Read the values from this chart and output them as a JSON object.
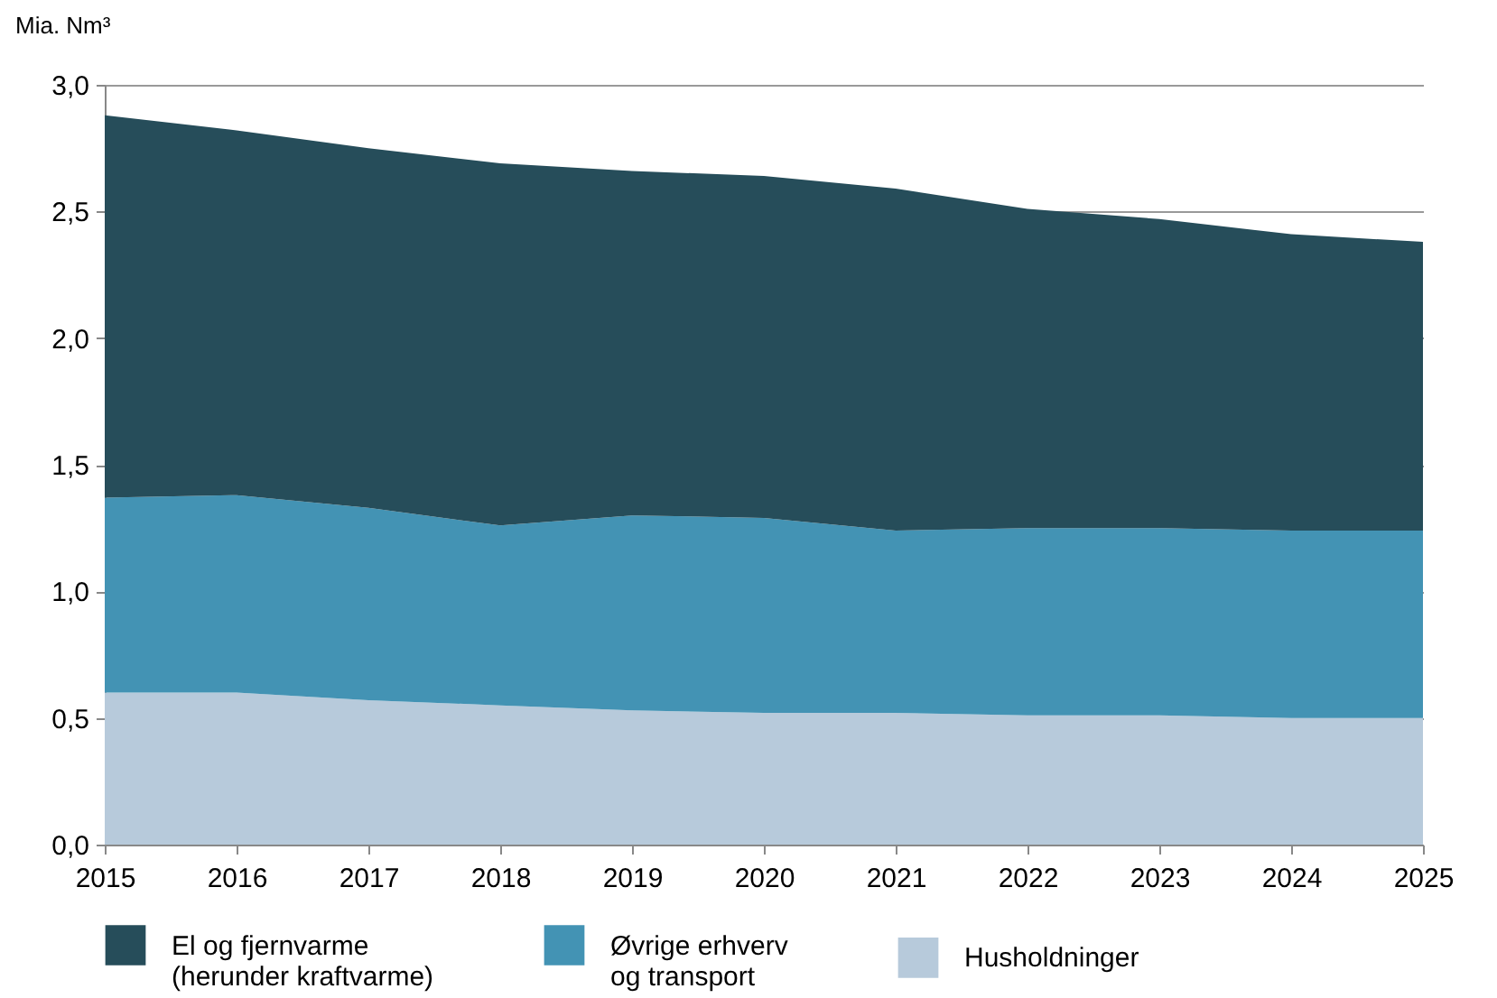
{
  "chart_data": {
    "type": "area",
    "stacked": true,
    "ylabel": "Mia. Nm³",
    "x": [
      2015,
      2016,
      2017,
      2018,
      2019,
      2020,
      2021,
      2022,
      2023,
      2024,
      2025
    ],
    "series": [
      {
        "name": "Husholdninger",
        "color": "#b7cadb",
        "values": [
          0.6,
          0.6,
          0.57,
          0.55,
          0.53,
          0.52,
          0.52,
          0.51,
          0.51,
          0.5,
          0.5
        ]
      },
      {
        "name": "Øvrige erhverv\nog transport",
        "color": "#4393b4",
        "values": [
          0.77,
          0.78,
          0.76,
          0.71,
          0.77,
          0.77,
          0.72,
          0.74,
          0.74,
          0.74,
          0.74
        ]
      },
      {
        "name": "El og fjernvarme\n(herunder kraftvarme)",
        "color": "#264d5a",
        "values": [
          1.51,
          1.44,
          1.42,
          1.43,
          1.36,
          1.35,
          1.35,
          1.26,
          1.22,
          1.17,
          1.14
        ]
      }
    ],
    "xlim": [
      2015,
      2025
    ],
    "xticks": [
      2015,
      2016,
      2017,
      2018,
      2019,
      2020,
      2021,
      2022,
      2023,
      2024,
      2025
    ],
    "ylim": [
      0,
      3
    ],
    "yticks": [
      {
        "value": 0,
        "label": "0,0"
      },
      {
        "value": 0.5,
        "label": "0,5"
      },
      {
        "value": 1,
        "label": "1,0"
      },
      {
        "value": 1.5,
        "label": "1,5"
      },
      {
        "value": 2,
        "label": "2,0"
      },
      {
        "value": 2.5,
        "label": "2,5"
      },
      {
        "value": 3,
        "label": "3,0"
      }
    ],
    "grid": "y",
    "legend": "bottom"
  }
}
